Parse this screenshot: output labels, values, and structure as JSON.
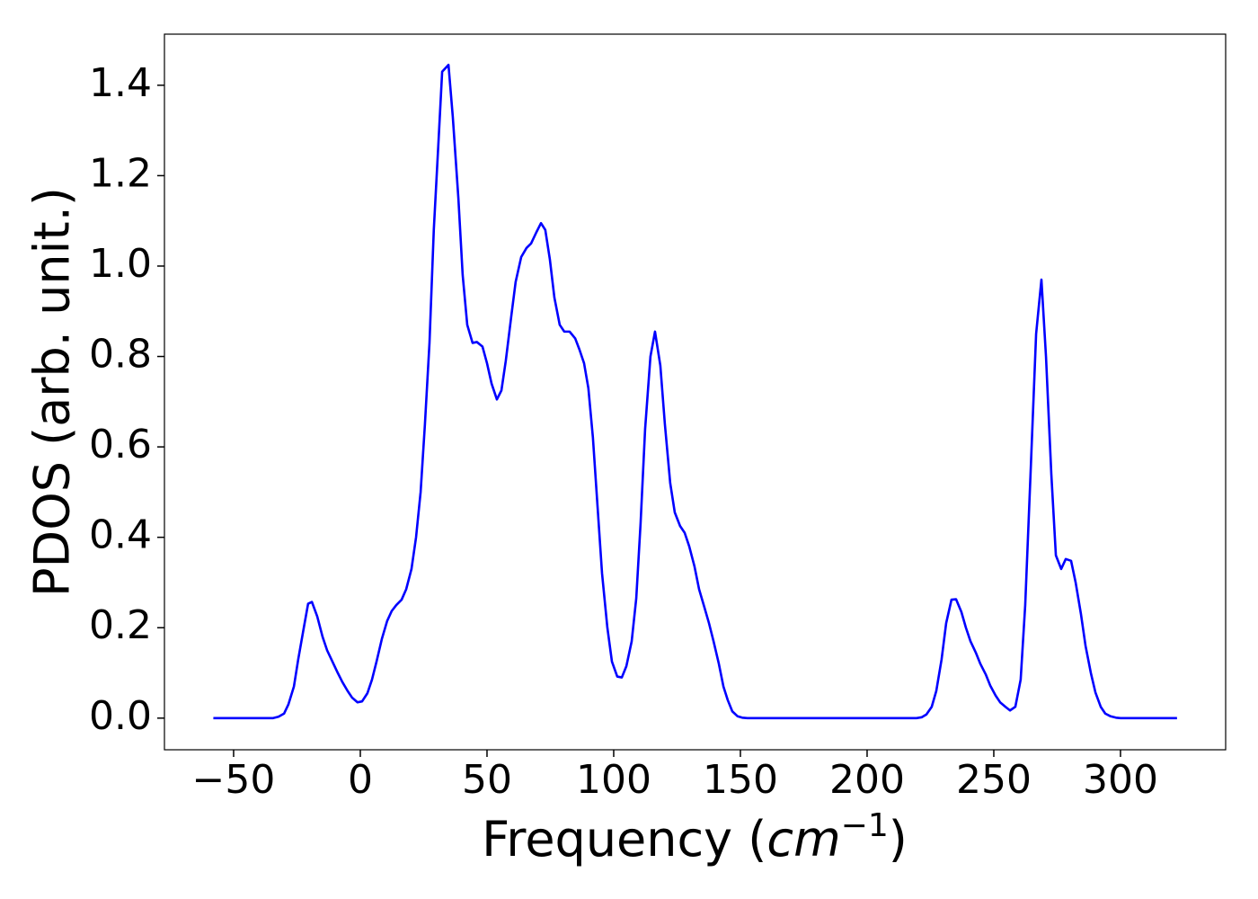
{
  "chart_data": {
    "type": "line",
    "ylabel": "PDOS (arb. unit.)",
    "xlabel": [
      "Frequency (",
      "cm",
      "−1",
      ")"
    ],
    "color": "#0000ff",
    "xlim": [
      -77.3,
      341.5
    ],
    "ylim": [
      -0.07,
      1.513
    ],
    "xticks": [
      {
        "value": -50,
        "label": "−50"
      },
      0,
      50,
      100,
      150,
      200,
      250,
      300
    ],
    "yticks": [
      {
        "value": 0,
        "label": "0.0"
      },
      0.2,
      0.4,
      0.6,
      0.8,
      {
        "value": 1,
        "label": "1.0"
      },
      1.2,
      1.4
    ],
    "x": [
      -58,
      -34.4,
      -32.3,
      -30.1,
      -28.4,
      -26.2,
      -24.5,
      -22.3,
      -20.6,
      -19.1,
      -17,
      -14.9,
      -13.1,
      -11,
      -8.9,
      -7.1,
      -5,
      -3.2,
      -1.1,
      0.7,
      2.8,
      4.6,
      6.4,
      8.5,
      10.6,
      12.4,
      14.2,
      16.3,
      18.1,
      20.2,
      22,
      23.8,
      25.5,
      27.3,
      29,
      30.9,
      32.3,
      34.8,
      36.5,
      38.7,
      40.4,
      42.2,
      44.3,
      46,
      48.2,
      50,
      51.8,
      53.9,
      55.7,
      57.4,
      59.6,
      61.3,
      63.5,
      65.6,
      67.4,
      69.5,
      71.3,
      73,
      74.8,
      76.6,
      78.7,
      80.5,
      82.6,
      84.8,
      86.5,
      88.3,
      90,
      91.8,
      93.6,
      95.4,
      97.5,
      99.3,
      101.4,
      103.2,
      105,
      107.1,
      108.9,
      110.6,
      112.4,
      114.5,
      116.3,
      118.4,
      120.2,
      122.3,
      124.1,
      126.2,
      128,
      129.8,
      131.9,
      133.7,
      135.8,
      137.6,
      139.4,
      141.5,
      143.3,
      145,
      146.8,
      148.9,
      150.7,
      152.8,
      219.5,
      221.6,
      223.4,
      225.5,
      227.3,
      229.4,
      231.2,
      233.3,
      235.1,
      237.2,
      239,
      240.8,
      242.9,
      244.7,
      246.8,
      248.6,
      250.7,
      252.5,
      254.6,
      256.4,
      258.5,
      260.6,
      262.4,
      264.5,
      266.7,
      268.8,
      270.6,
      272.7,
      274.5,
      276.6,
      278.4,
      280.5,
      282.3,
      284.4,
      286.2,
      288.3,
      290.1,
      292.2,
      294,
      296.1,
      298.2,
      300,
      322.3
    ],
    "values": [
      0,
      0,
      0.003,
      0.01,
      0.03,
      0.07,
      0.13,
      0.2,
      0.253,
      0.257,
      0.225,
      0.18,
      0.15,
      0.125,
      0.1,
      0.08,
      0.06,
      0.045,
      0.035,
      0.037,
      0.055,
      0.085,
      0.125,
      0.175,
      0.215,
      0.237,
      0.25,
      0.262,
      0.285,
      0.33,
      0.4,
      0.5,
      0.65,
      0.83,
      1.08,
      1.28,
      1.43,
      1.445,
      1.33,
      1.15,
      0.98,
      0.87,
      0.83,
      0.832,
      0.822,
      0.785,
      0.74,
      0.705,
      0.725,
      0.79,
      0.89,
      0.965,
      1.02,
      1.04,
      1.05,
      1.075,
      1.095,
      1.08,
      1.015,
      0.93,
      0.87,
      0.855,
      0.855,
      0.84,
      0.815,
      0.785,
      0.73,
      0.62,
      0.47,
      0.32,
      0.2,
      0.125,
      0.092,
      0.09,
      0.115,
      0.17,
      0.265,
      0.43,
      0.64,
      0.8,
      0.855,
      0.78,
      0.65,
      0.52,
      0.455,
      0.425,
      0.41,
      0.38,
      0.335,
      0.285,
      0.245,
      0.21,
      0.17,
      0.12,
      0.07,
      0.04,
      0.015,
      0.004,
      0.001,
      0,
      0,
      0.002,
      0.008,
      0.025,
      0.06,
      0.13,
      0.21,
      0.262,
      0.263,
      0.235,
      0.2,
      0.17,
      0.145,
      0.12,
      0.097,
      0.072,
      0.05,
      0.035,
      0.025,
      0.017,
      0.025,
      0.085,
      0.25,
      0.54,
      0.85,
      0.97,
      0.8,
      0.54,
      0.36,
      0.33,
      0.352,
      0.348,
      0.3,
      0.23,
      0.16,
      0.1,
      0.057,
      0.025,
      0.01,
      0.004,
      0.001,
      0,
      0
    ]
  }
}
